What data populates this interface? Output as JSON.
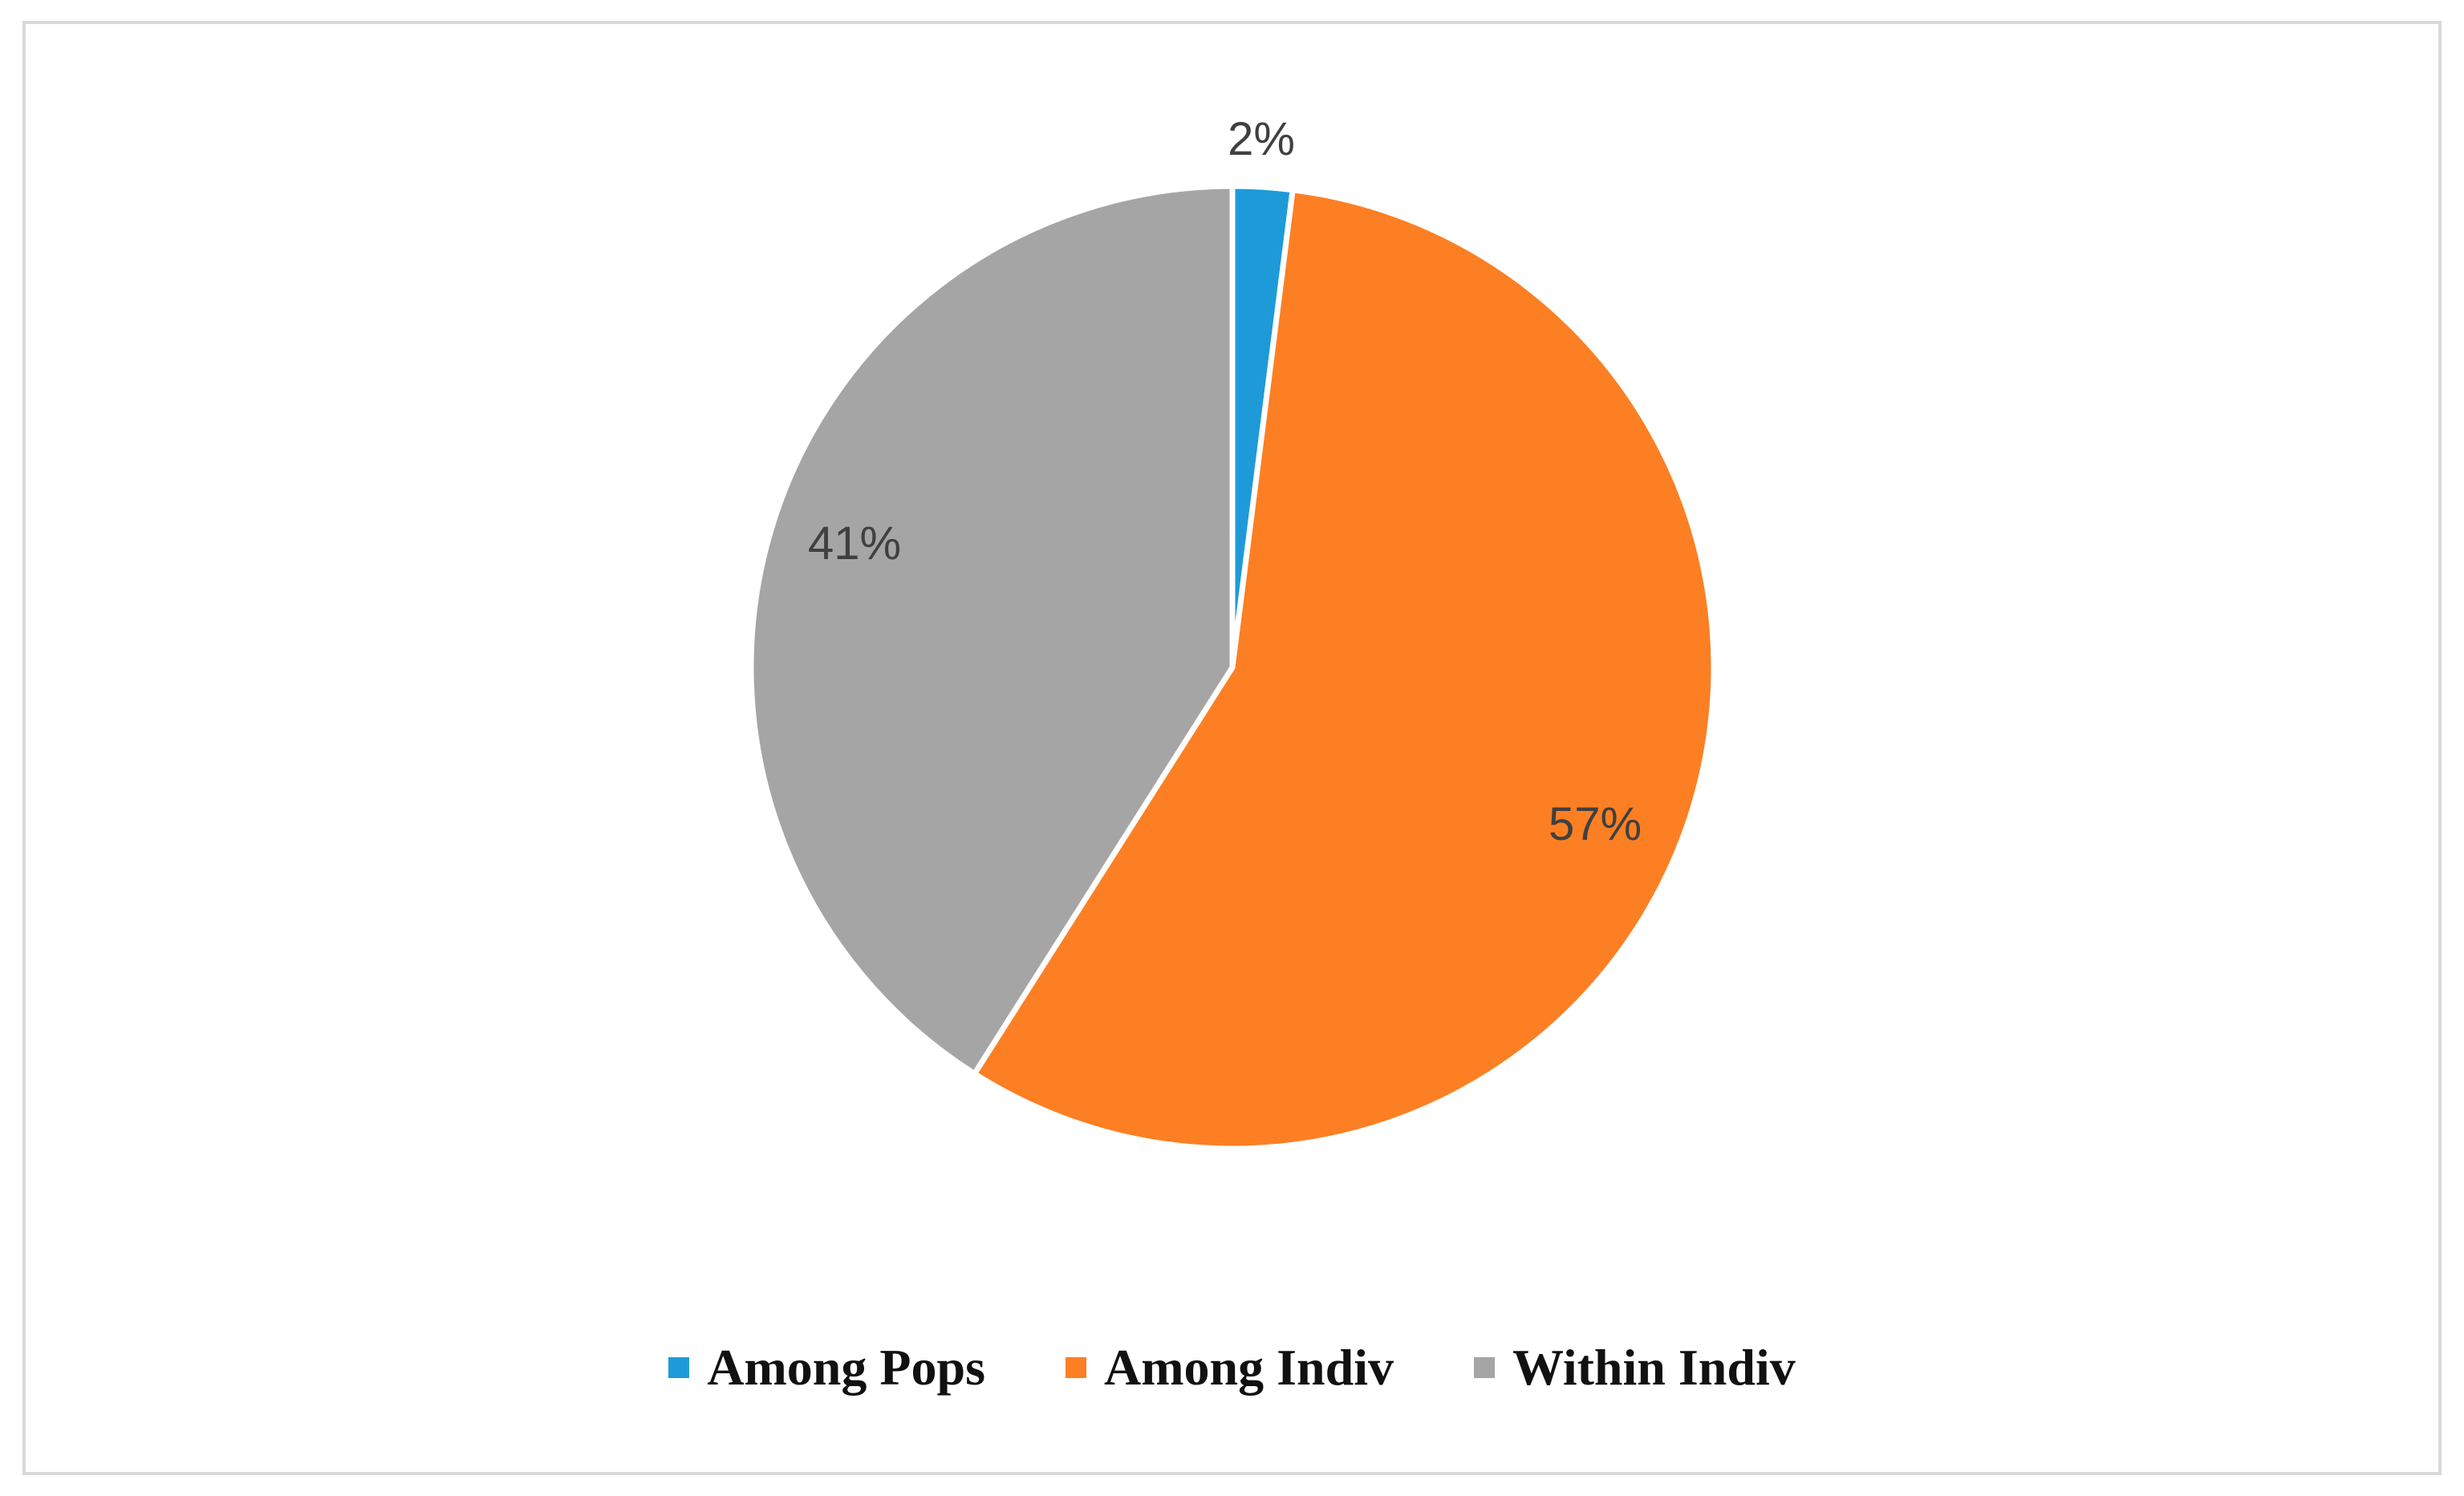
{
  "chart_data": {
    "type": "pie",
    "categories": [
      "Among Pops",
      "Among Indiv",
      "Within Indiv"
    ],
    "values": [
      2,
      57,
      41
    ],
    "data_labels": [
      "2%",
      "57%",
      "41%"
    ],
    "colors": [
      "#1f9ad8",
      "#fd7f23",
      "#a5a5a5"
    ],
    "title": "",
    "legend_position": "bottom",
    "start_angle": "top",
    "direction": "clockwise"
  },
  "legend": {
    "items": [
      {
        "label": "Among Pops",
        "color": "#1f9ad8"
      },
      {
        "label": "Among Indiv",
        "color": "#fd7f23"
      },
      {
        "label": "Within Indiv",
        "color": "#a5a5a5"
      }
    ]
  }
}
